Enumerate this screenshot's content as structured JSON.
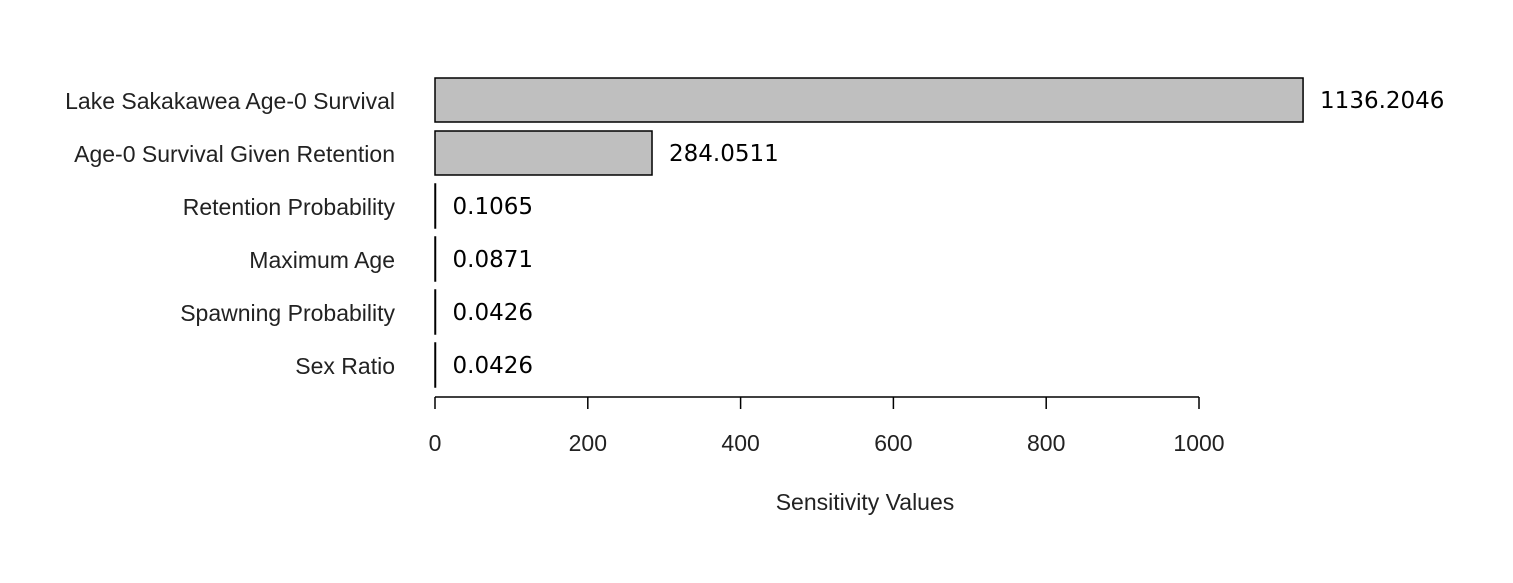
{
  "chart_data": {
    "type": "bar",
    "orientation": "horizontal",
    "title": "",
    "xlabel": "Sensitivity Values",
    "ylabel": "",
    "xlim": [
      0,
      1000
    ],
    "xticks": [
      0,
      200,
      400,
      600,
      800,
      1000
    ],
    "categories": [
      "Lake Sakakawea Age-0 Survival",
      "Age-0 Survival Given Retention",
      "Retention Probability",
      "Maximum Age",
      "Spawning Probability",
      "Sex Ratio"
    ],
    "values": [
      1136.2046,
      284.0511,
      0.1065,
      0.0871,
      0.0426,
      0.0426
    ],
    "value_labels": [
      "1136.2046",
      "284.0511",
      "0.1065",
      "0.0871",
      "0.0426",
      "0.0426"
    ],
    "bar_color": "#bfbfbf",
    "bar_outline": "#000000",
    "grid": false,
    "legend": "none"
  }
}
